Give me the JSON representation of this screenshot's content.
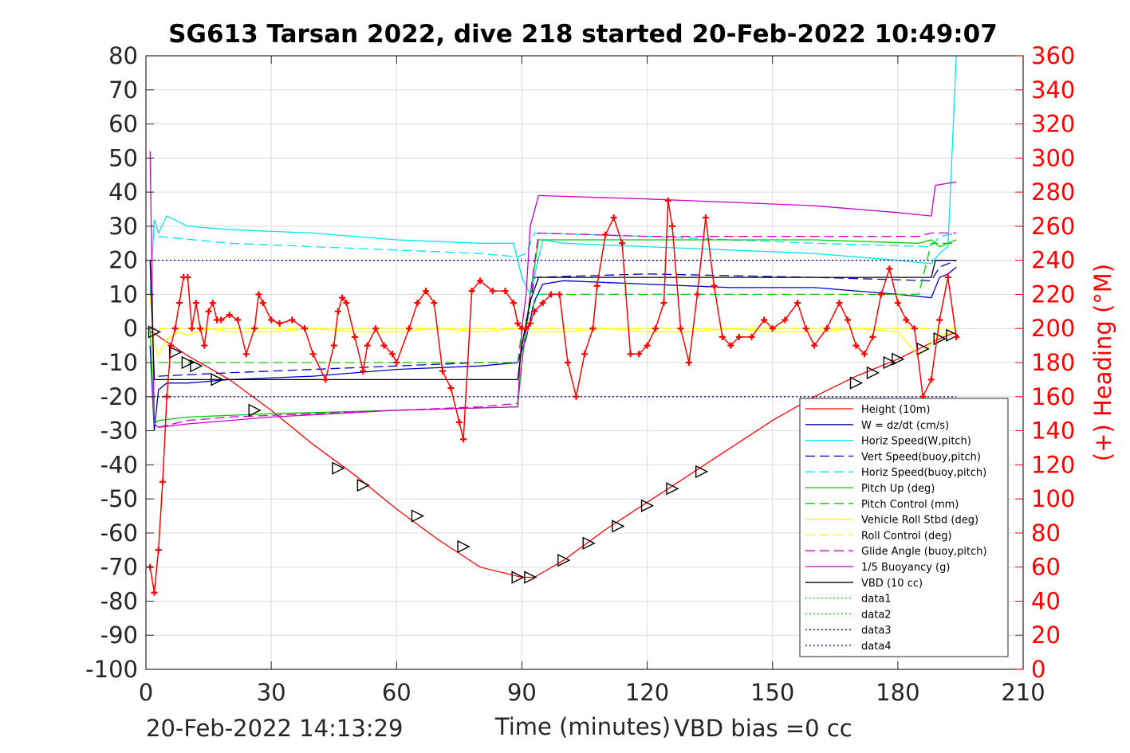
{
  "chart_data": {
    "type": "line",
    "title": "SG613 Tarsan 2022, dive 218 started 20-Feb-2022 10:49:07",
    "xlabel": "Time (minutes)",
    "ylabel": "",
    "y2label": "(+) Heading (°M)",
    "xlim": [
      0,
      210
    ],
    "ylim": [
      -100,
      80
    ],
    "y2lim": [
      0,
      360
    ],
    "xticks": [
      "0",
      "30",
      "60",
      "90",
      "120",
      "150",
      "180",
      "210"
    ],
    "yticks": [
      "-100",
      "-90",
      "-80",
      "-70",
      "-60",
      "-50",
      "-40",
      "-30",
      "-20",
      "-10",
      "0",
      "10",
      "20",
      "30",
      "40",
      "50",
      "60",
      "70",
      "80"
    ],
    "y2ticks": [
      "0",
      "20",
      "40",
      "60",
      "80",
      "100",
      "120",
      "140",
      "160",
      "180",
      "200",
      "220",
      "240",
      "260",
      "280",
      "300",
      "320",
      "340",
      "360"
    ],
    "grid": true,
    "legend_position": "lower-right",
    "colors": {
      "axis": "#262626",
      "heading": "#ff0000",
      "grid": "#dcdcdc"
    },
    "series": [
      {
        "name": "Height (10m)",
        "color": "#ff0000",
        "style": "solid",
        "x": [
          1,
          2,
          10,
          20,
          30,
          40,
          50,
          60,
          70,
          80,
          90,
          93,
          100,
          110,
          120,
          130,
          140,
          150,
          160,
          170,
          180,
          190,
          194
        ],
        "y": [
          -1,
          -1.5,
          -8,
          -15,
          -24,
          -34,
          -43,
          -53,
          -62,
          -70,
          -73,
          -73,
          -68,
          -59,
          -51,
          -43,
          -35,
          -27,
          -20,
          -14,
          -9,
          -3,
          -1
        ]
      },
      {
        "name": "W = dz/dt (cm/s)",
        "color": "#0000cc",
        "style": "solid",
        "x": [
          1,
          2,
          3,
          5,
          10,
          20,
          40,
          60,
          80,
          89,
          91,
          93,
          95,
          100,
          120,
          140,
          160,
          180,
          188,
          190,
          192,
          194
        ],
        "y": [
          -5,
          -30,
          -18,
          -16,
          -16,
          -15,
          -14,
          -12,
          -11,
          -10,
          -3,
          8,
          13,
          14,
          13,
          12,
          12,
          10,
          9,
          15,
          16,
          18
        ]
      },
      {
        "name": "Horiz Speed(W,pitch)",
        "color": "#00e5ee",
        "style": "solid",
        "x": [
          1,
          2,
          3,
          5,
          10,
          20,
          40,
          60,
          80,
          88,
          90,
          92,
          95,
          100,
          120,
          140,
          160,
          180,
          188,
          190,
          192,
          194
        ],
        "y": [
          10,
          32,
          28,
          33,
          30,
          29,
          28,
          26,
          25,
          25,
          15,
          10,
          26,
          25,
          24,
          23,
          22,
          20,
          19,
          22,
          24,
          80
        ]
      },
      {
        "name": "Vert Speed(buoy,pitch)",
        "color": "#0000cc",
        "style": "dash",
        "x": [
          3,
          20,
          40,
          60,
          80,
          89,
          91,
          93,
          120,
          160,
          188,
          190,
          194
        ],
        "y": [
          -14,
          -13,
          -12,
          -11,
          -10,
          -10,
          0,
          15,
          16,
          15,
          14,
          18,
          20
        ]
      },
      {
        "name": "Horiz Speed(buoy,pitch)",
        "color": "#00e5ee",
        "style": "dash",
        "x": [
          3,
          20,
          40,
          60,
          80,
          89,
          91,
          93,
          120,
          160,
          188,
          190,
          194
        ],
        "y": [
          27,
          25,
          24,
          23,
          22,
          21,
          22,
          28,
          27,
          25,
          24,
          27,
          28
        ]
      },
      {
        "name": "Pitch Up (deg)",
        "color": "#00cc00",
        "style": "solid",
        "x": [
          1,
          2,
          3,
          10,
          30,
          60,
          89,
          90,
          92,
          94,
          120,
          160,
          185,
          188,
          190,
          194
        ],
        "y": [
          0,
          -28,
          -27,
          -26,
          -25,
          -24,
          -23,
          -10,
          10,
          26,
          26,
          26,
          25,
          26,
          24,
          26
        ]
      },
      {
        "name": "Pitch Control (mm)",
        "color": "#00cc00",
        "style": "dash",
        "x": [
          3,
          20,
          40,
          60,
          80,
          89,
          90,
          92,
          94,
          120,
          160,
          185,
          188,
          194
        ],
        "y": [
          -10,
          -10,
          -10,
          -10,
          -10,
          -10,
          0,
          5,
          10,
          10,
          10,
          10,
          25,
          25
        ]
      },
      {
        "name": "Vehicle Roll Stbd (deg)",
        "color": "#ffff00",
        "style": "solid",
        "x": [
          1,
          2,
          3,
          5,
          8,
          10,
          15,
          20,
          30,
          40,
          50,
          60,
          70,
          80,
          89,
          92,
          100,
          110,
          120,
          130,
          140,
          150,
          160,
          170,
          180,
          185,
          190,
          194
        ],
        "y": [
          10,
          -5,
          -8,
          -3,
          -1,
          -2,
          0,
          -1,
          -1,
          0,
          -1,
          -1,
          0,
          -1,
          0,
          -1,
          -1,
          0,
          -1,
          -1,
          0,
          -1,
          -1,
          0,
          -1,
          -8,
          -2,
          -1
        ]
      },
      {
        "name": "Roll Control (deg)",
        "color": "#ffff00",
        "style": "dash",
        "x": [
          3,
          30,
          60,
          89,
          120,
          150,
          185,
          194
        ],
        "y": [
          0,
          0,
          0,
          0,
          0,
          0,
          0,
          0
        ]
      },
      {
        "name": "Glide Angle (buoy,pitch)",
        "color": "#cc00cc",
        "style": "dash",
        "x": [
          3,
          10,
          20,
          40,
          60,
          80,
          89,
          90,
          92,
          94,
          120,
          160,
          185,
          188,
          194
        ],
        "y": [
          -29,
          -27,
          -26,
          -25,
          -24,
          -23,
          -22,
          -10,
          10,
          28,
          27,
          27,
          27,
          28,
          28
        ]
      },
      {
        "name": "1/5 Buoyancy (g)",
        "color": "#cc00cc",
        "style": "solid",
        "x": [
          1,
          2,
          3,
          10,
          30,
          60,
          89,
          90,
          91,
          92,
          94,
          120,
          140,
          160,
          180,
          188,
          189,
          194
        ],
        "y": [
          52,
          -28,
          -29,
          -28,
          -26,
          -24,
          -23,
          0,
          10,
          30,
          39,
          38,
          37,
          36,
          34,
          33,
          42,
          43
        ]
      },
      {
        "name": "VBD (10 cc)",
        "color": "#000000",
        "style": "solid",
        "x": [
          1,
          2,
          3,
          30,
          60,
          89,
          90,
          92,
          94,
          120,
          160,
          188,
          189,
          194
        ],
        "y": [
          20,
          -15,
          -15,
          -15,
          -15,
          -15,
          -5,
          8,
          15,
          15,
          15,
          15,
          20,
          20
        ]
      },
      {
        "name": "data1",
        "color": "#00cc00",
        "style": "dot",
        "x": [],
        "y": []
      },
      {
        "name": "data2",
        "color": "#00cc00",
        "style": "dot",
        "x": [],
        "y": []
      },
      {
        "name": "data3",
        "color": "#000080",
        "style": "dot",
        "x": [
          0,
          194
        ],
        "y": [
          -20,
          -20
        ]
      },
      {
        "name": "data4",
        "color": "#000080",
        "style": "dot",
        "x": [
          0,
          194
        ],
        "y": [
          20,
          20
        ]
      }
    ],
    "heading": {
      "x": [
        1,
        2,
        3,
        4,
        5,
        6,
        7,
        8,
        9,
        10,
        11,
        12,
        13,
        14,
        15,
        16,
        17,
        18,
        20,
        22,
        24,
        26,
        27,
        28,
        30,
        32,
        35,
        38,
        40,
        43,
        45,
        46,
        47,
        48,
        50,
        52,
        53,
        55,
        57,
        59,
        60,
        63,
        65,
        67,
        69,
        71,
        73,
        75,
        76,
        78,
        80,
        83,
        86,
        88,
        89,
        90,
        91,
        92,
        93,
        95,
        97,
        99,
        101,
        103,
        105,
        107,
        108,
        110,
        112,
        114,
        116,
        118,
        120,
        122,
        124,
        125,
        126,
        128,
        130,
        132,
        134,
        136,
        138,
        140,
        142,
        145,
        148,
        150,
        153,
        156,
        158,
        160,
        163,
        166,
        168,
        170,
        172,
        174,
        176,
        178,
        180,
        182,
        184,
        186,
        188,
        190,
        192,
        194
      ],
      "y": [
        60,
        45,
        70,
        110,
        160,
        190,
        200,
        215,
        230,
        230,
        200,
        215,
        200,
        190,
        210,
        215,
        205,
        205,
        208,
        205,
        185,
        200,
        220,
        215,
        205,
        203,
        205,
        200,
        185,
        170,
        190,
        210,
        218,
        215,
        195,
        175,
        190,
        200,
        190,
        185,
        180,
        200,
        215,
        222,
        215,
        175,
        165,
        145,
        135,
        222,
        228,
        222,
        222,
        215,
        203,
        200,
        200,
        203,
        210,
        215,
        220,
        220,
        180,
        160,
        185,
        200,
        225,
        255,
        265,
        250,
        185,
        185,
        190,
        200,
        215,
        275,
        260,
        200,
        180,
        220,
        265,
        225,
        195,
        190,
        195,
        195,
        205,
        200,
        205,
        215,
        200,
        190,
        200,
        215,
        205,
        190,
        185,
        195,
        220,
        235,
        215,
        205,
        200,
        160,
        170,
        205,
        230,
        195
      ]
    },
    "markers": [
      {
        "x": 2,
        "y": -1
      },
      {
        "x": 7,
        "y": -7
      },
      {
        "x": 10,
        "y": -10
      },
      {
        "x": 12,
        "y": -11
      },
      {
        "x": 17,
        "y": -15
      },
      {
        "x": 26,
        "y": -24
      },
      {
        "x": 46,
        "y": -41
      },
      {
        "x": 52,
        "y": -46
      },
      {
        "x": 65,
        "y": -55
      },
      {
        "x": 76,
        "y": -64
      },
      {
        "x": 89,
        "y": -73
      },
      {
        "x": 92,
        "y": -73
      },
      {
        "x": 100,
        "y": -68
      },
      {
        "x": 106,
        "y": -63
      },
      {
        "x": 113,
        "y": -58
      },
      {
        "x": 120,
        "y": -52
      },
      {
        "x": 126,
        "y": -47
      },
      {
        "x": 133,
        "y": -42
      },
      {
        "x": 170,
        "y": -16
      },
      {
        "x": 174,
        "y": -13
      },
      {
        "x": 178,
        "y": -10
      },
      {
        "x": 180,
        "y": -9
      },
      {
        "x": 186,
        "y": -6
      },
      {
        "x": 190,
        "y": -3
      },
      {
        "x": 193,
        "y": -2
      }
    ]
  },
  "footer": {
    "date": "20-Feb-2022 14:13:29",
    "vbd_bias": "VBD bias =0 cc"
  }
}
